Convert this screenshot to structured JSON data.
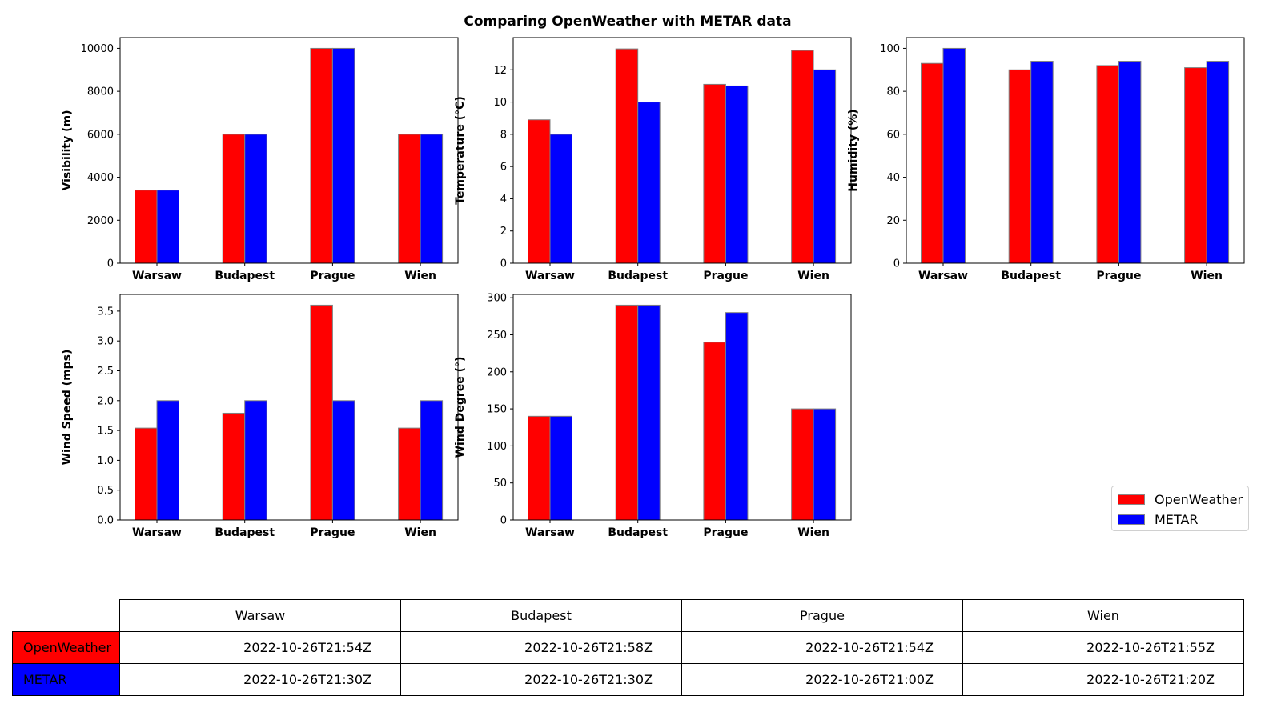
{
  "title": "Comparing OpenWeather with METAR data",
  "colors": {
    "openweather": "#ff0000",
    "metar": "#0000ff",
    "bar_edge": "#808080"
  },
  "legend": {
    "position": "right",
    "items": [
      "OpenWeather",
      "METAR"
    ]
  },
  "chart_data": [
    {
      "type": "bar",
      "title": "",
      "ylabel": "Visibility (m)",
      "categories": [
        "Warsaw",
        "Budapest",
        "Prague",
        "Wien"
      ],
      "ylim": [
        0,
        10500
      ],
      "yticks": [
        0,
        2000,
        4000,
        6000,
        8000,
        10000
      ],
      "series": [
        {
          "name": "OpenWeather",
          "values": [
            3400,
            6000,
            10000,
            6000
          ]
        },
        {
          "name": "METAR",
          "values": [
            3400,
            6000,
            10000,
            6000
          ]
        }
      ]
    },
    {
      "type": "bar",
      "title": "",
      "ylabel": "Temperature (°C)",
      "categories": [
        "Warsaw",
        "Budapest",
        "Prague",
        "Wien"
      ],
      "ylim": [
        0,
        14
      ],
      "yticks": [
        0,
        2,
        4,
        6,
        8,
        10,
        12
      ],
      "series": [
        {
          "name": "OpenWeather",
          "values": [
            8.9,
            13.3,
            11.1,
            13.2
          ]
        },
        {
          "name": "METAR",
          "values": [
            8,
            10,
            11,
            12
          ]
        }
      ]
    },
    {
      "type": "bar",
      "title": "",
      "ylabel": "Humidity (%)",
      "categories": [
        "Warsaw",
        "Budapest",
        "Prague",
        "Wien"
      ],
      "ylim": [
        0,
        105
      ],
      "yticks": [
        0,
        20,
        40,
        60,
        80,
        100
      ],
      "series": [
        {
          "name": "OpenWeather",
          "values": [
            93,
            90,
            92,
            91
          ]
        },
        {
          "name": "METAR",
          "values": [
            100,
            94,
            94,
            94
          ]
        }
      ]
    },
    {
      "type": "bar",
      "title": "",
      "ylabel": "Wind Speed (mps)",
      "categories": [
        "Warsaw",
        "Budapest",
        "Prague",
        "Wien"
      ],
      "ylim": [
        0,
        3.78
      ],
      "yticks": [
        0.0,
        0.5,
        1.0,
        1.5,
        2.0,
        2.5,
        3.0,
        3.5
      ],
      "ytick_decimals": 1,
      "series": [
        {
          "name": "OpenWeather",
          "values": [
            1.54,
            1.79,
            3.6,
            1.54
          ]
        },
        {
          "name": "METAR",
          "values": [
            2,
            2,
            2,
            2
          ]
        }
      ]
    },
    {
      "type": "bar",
      "title": "",
      "ylabel": "Wind Degree (°)",
      "categories": [
        "Warsaw",
        "Budapest",
        "Prague",
        "Wien"
      ],
      "ylim": [
        0,
        304.5
      ],
      "yticks": [
        0,
        50,
        100,
        150,
        200,
        250,
        300
      ],
      "series": [
        {
          "name": "OpenWeather",
          "values": [
            140,
            290,
            240,
            150
          ]
        },
        {
          "name": "METAR",
          "values": [
            140,
            290,
            280,
            150
          ]
        }
      ]
    }
  ],
  "table": {
    "columns": [
      "Warsaw",
      "Budapest",
      "Prague",
      "Wien"
    ],
    "rows": [
      {
        "label": "OpenWeather",
        "color": "#ff0000",
        "cells": [
          "2022-10-26T21:54Z",
          "2022-10-26T21:58Z",
          "2022-10-26T21:54Z",
          "2022-10-26T21:55Z"
        ]
      },
      {
        "label": "METAR",
        "color": "#0000ff",
        "cells": [
          "2022-10-26T21:30Z",
          "2022-10-26T21:30Z",
          "2022-10-26T21:00Z",
          "2022-10-26T21:20Z"
        ]
      }
    ]
  }
}
